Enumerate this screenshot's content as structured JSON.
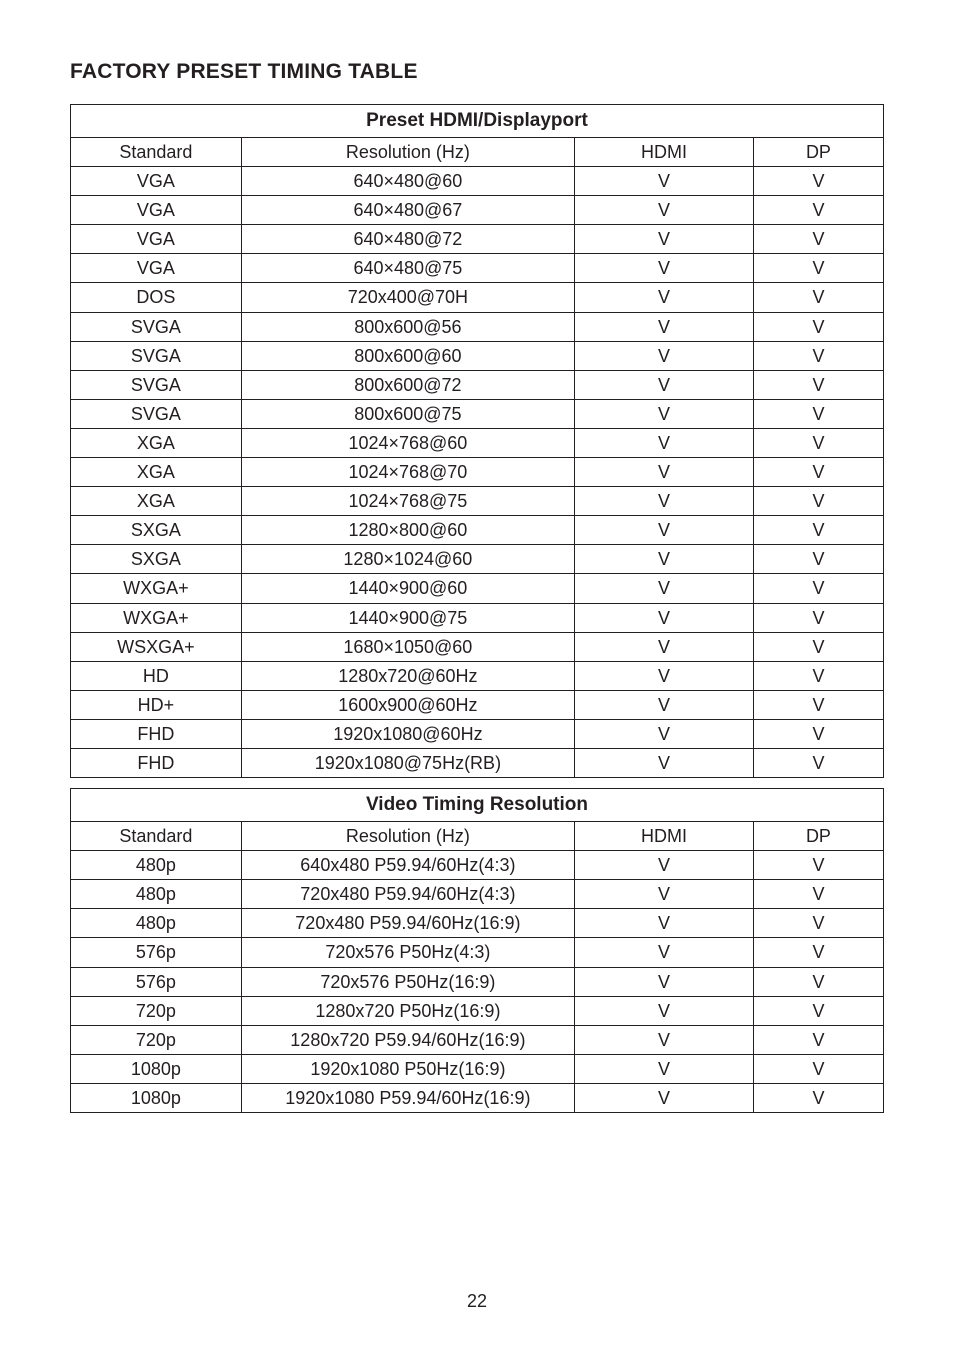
{
  "title": "FACTORY PRESET TIMING TABLE",
  "page_number": "22",
  "table1": {
    "section_title": "Preset HDMI/Displayport",
    "header": {
      "c1": "Standard",
      "c2": "Resolution (Hz)",
      "c3": "HDMI",
      "c4": "DP"
    },
    "rows": [
      {
        "c1": "VGA",
        "c2": "640×480@60",
        "c3": "V",
        "c4": "V"
      },
      {
        "c1": "VGA",
        "c2": "640×480@67",
        "c3": "V",
        "c4": "V"
      },
      {
        "c1": "VGA",
        "c2": "640×480@72",
        "c3": "V",
        "c4": "V"
      },
      {
        "c1": "VGA",
        "c2": "640×480@75",
        "c3": "V",
        "c4": "V"
      },
      {
        "c1": "DOS",
        "c2": "720x400@70H",
        "c3": "V",
        "c4": "V"
      },
      {
        "c1": "SVGA",
        "c2": "800x600@56",
        "c3": "V",
        "c4": "V"
      },
      {
        "c1": "SVGA",
        "c2": "800x600@60",
        "c3": "V",
        "c4": "V"
      },
      {
        "c1": "SVGA",
        "c2": "800x600@72",
        "c3": "V",
        "c4": "V"
      },
      {
        "c1": "SVGA",
        "c2": "800x600@75",
        "c3": "V",
        "c4": "V"
      },
      {
        "c1": "XGA",
        "c2": "1024×768@60",
        "c3": "V",
        "c4": "V"
      },
      {
        "c1": "XGA",
        "c2": "1024×768@70",
        "c3": "V",
        "c4": "V"
      },
      {
        "c1": "XGA",
        "c2": "1024×768@75",
        "c3": "V",
        "c4": "V"
      },
      {
        "c1": "SXGA",
        "c2": "1280×800@60",
        "c3": "V",
        "c4": "V"
      },
      {
        "c1": "SXGA",
        "c2": "1280×1024@60",
        "c3": "V",
        "c4": "V"
      },
      {
        "c1": "WXGA+",
        "c2": "1440×900@60",
        "c3": "V",
        "c4": "V"
      },
      {
        "c1": "WXGA+",
        "c2": "1440×900@75",
        "c3": "V",
        "c4": "V"
      },
      {
        "c1": "WSXGA+",
        "c2": "1680×1050@60",
        "c3": "V",
        "c4": "V"
      },
      {
        "c1": "HD",
        "c2": "1280x720@60Hz",
        "c3": "V",
        "c4": "V"
      },
      {
        "c1": "HD+",
        "c2": "1600x900@60Hz",
        "c3": "V",
        "c4": "V"
      },
      {
        "c1": "FHD",
        "c2": "1920x1080@60Hz",
        "c3": "V",
        "c4": "V"
      },
      {
        "c1": "FHD",
        "c2": "1920x1080@75Hz(RB)",
        "c3": "V",
        "c4": "V"
      }
    ]
  },
  "table2": {
    "section_title": "Video Timing Resolution",
    "header": {
      "c1": "Standard",
      "c2": "Resolution (Hz)",
      "c3": "HDMI",
      "c4": "DP"
    },
    "rows": [
      {
        "c1": "480p",
        "c2": "640x480 P59.94/60Hz(4:3)",
        "c3": "V",
        "c4": "V"
      },
      {
        "c1": "480p",
        "c2": "720x480 P59.94/60Hz(4:3)",
        "c3": "V",
        "c4": "V"
      },
      {
        "c1": "480p",
        "c2": "720x480 P59.94/60Hz(16:9)",
        "c3": "V",
        "c4": "V"
      },
      {
        "c1": "576p",
        "c2": "720x576 P50Hz(4:3)",
        "c3": "V",
        "c4": "V"
      },
      {
        "c1": "576p",
        "c2": "720x576 P50Hz(16:9)",
        "c3": "V",
        "c4": "V"
      },
      {
        "c1": "720p",
        "c2": "1280x720 P50Hz(16:9)",
        "c3": "V",
        "c4": "V"
      },
      {
        "c1": "720p",
        "c2": "1280x720 P59.94/60Hz(16:9)",
        "c3": "V",
        "c4": "V"
      },
      {
        "c1": "1080p",
        "c2": "1920x1080 P50Hz(16:9)",
        "c3": "V",
        "c4": "V"
      },
      {
        "c1": "1080p",
        "c2": "1920x1080 P59.94/60Hz(16:9)",
        "c3": "V",
        "c4": "V"
      }
    ]
  }
}
